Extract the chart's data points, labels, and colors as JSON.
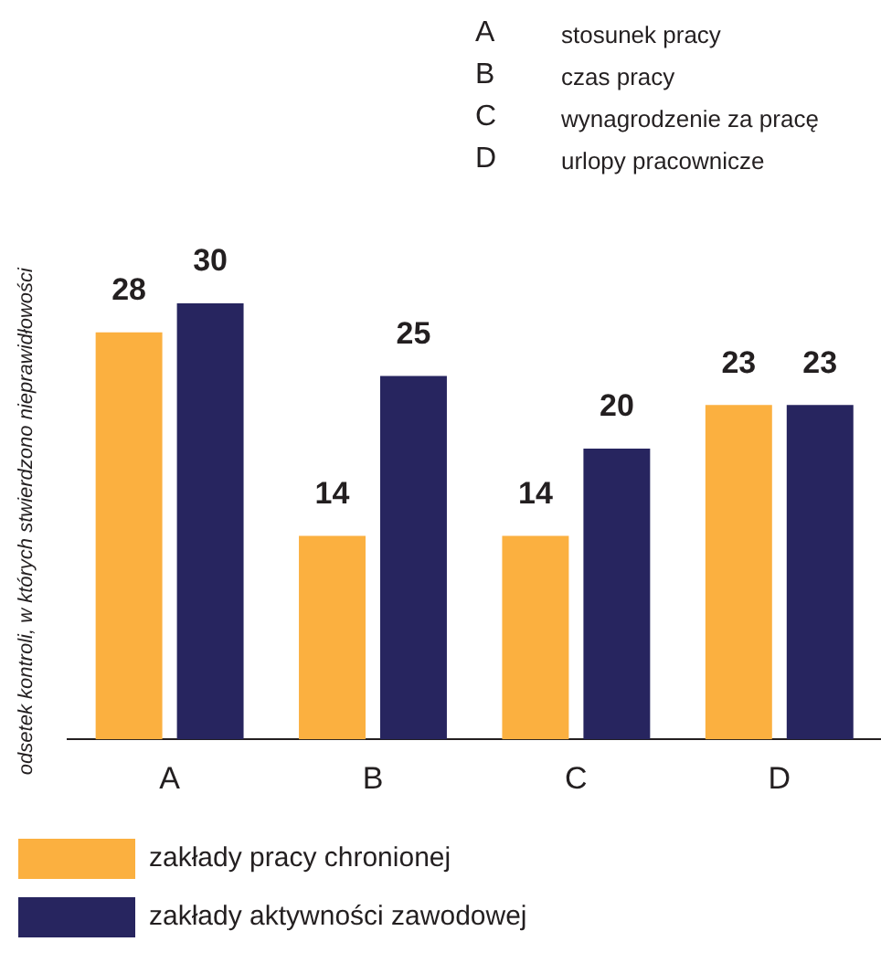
{
  "chart_data": {
    "type": "bar",
    "ylabel": "odsetek kontroli, w których stwierdzono nieprawidłowości",
    "categories": [
      "A",
      "B",
      "C",
      "D"
    ],
    "series": [
      {
        "name": "zakłady pracy chronionej",
        "color": "#fbb040",
        "values": [
          28,
          14,
          14,
          23
        ]
      },
      {
        "name": "zakłady aktywności zawodowej",
        "color": "#27255f",
        "values": [
          30,
          25,
          20,
          23
        ]
      }
    ],
    "data_labels": true,
    "legend": "bottom",
    "grid": false,
    "tick_labels": "x",
    "annotations": [
      "A stosunek pracy",
      "B czas pracy",
      "C wynagrodzenie za pracę",
      "D urlopy pracownicze"
    ]
  }
}
